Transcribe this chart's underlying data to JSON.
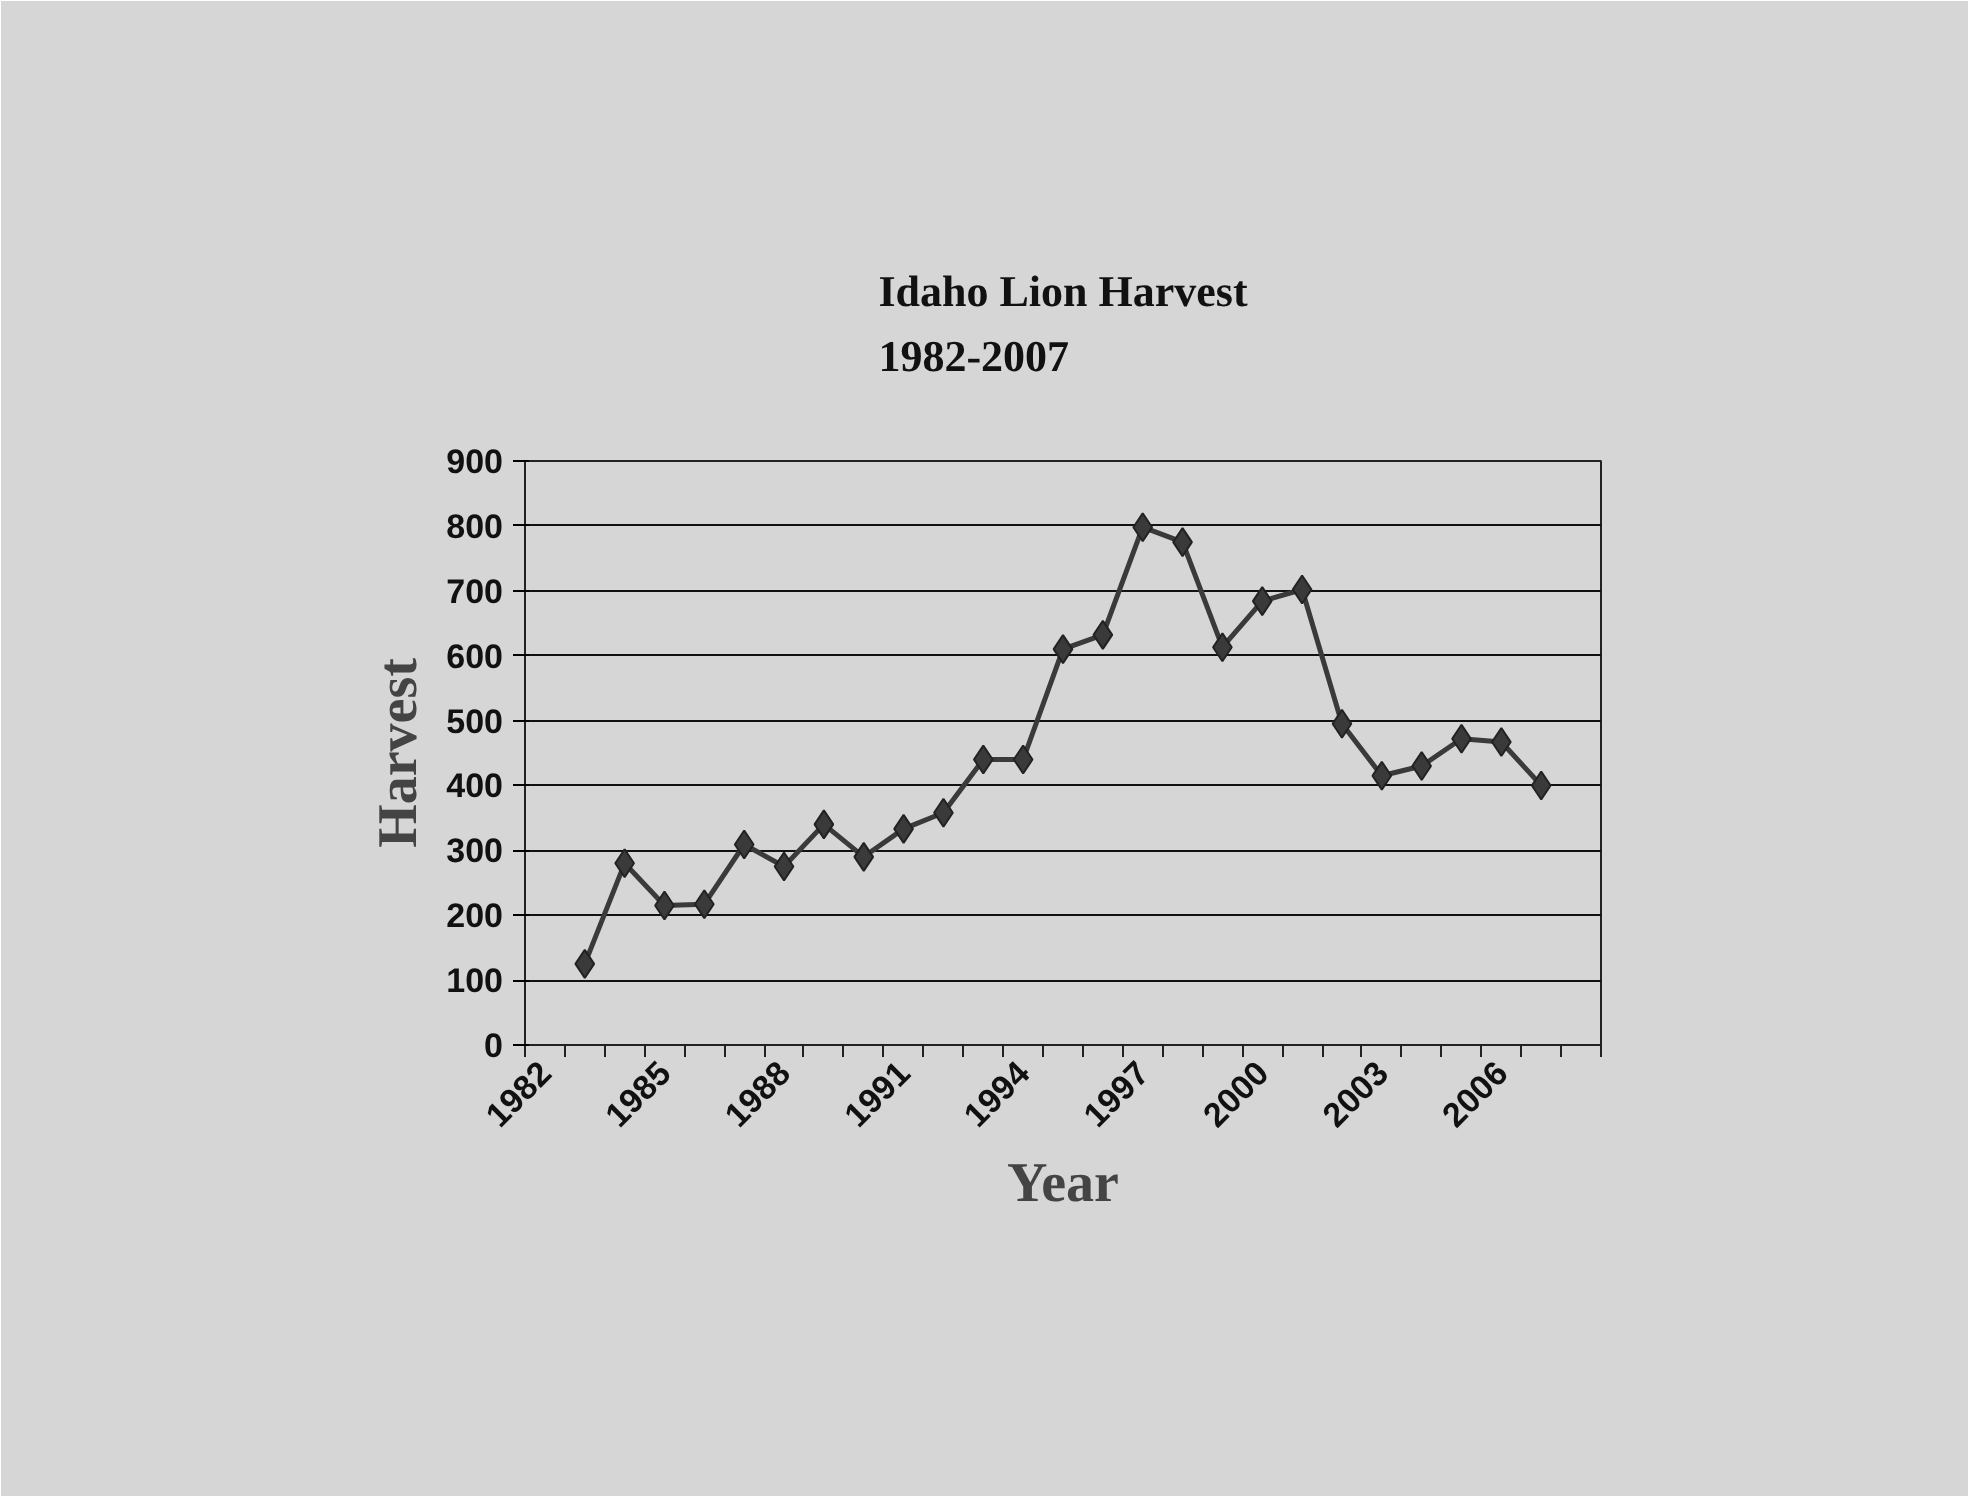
{
  "chart_data": {
    "type": "line",
    "title": "Idaho Lion Harvest\n1982-2007",
    "xlabel": "Year",
    "ylabel": "Harvest",
    "categories": [
      "1982",
      null,
      null,
      "1985",
      null,
      null,
      "1988",
      null,
      null,
      "1991",
      null,
      null,
      "1994",
      null,
      null,
      "1997",
      null,
      null,
      "2000",
      null,
      null,
      "2003",
      null,
      null,
      "2006",
      null,
      null
    ],
    "series": [
      {
        "color": "#3a3a3a",
        "values": [
          null,
          125,
          280,
          215,
          217,
          309,
          275,
          340,
          290,
          333,
          358,
          440,
          440,
          610,
          632,
          798,
          775,
          613,
          684,
          702,
          495,
          415,
          430,
          472,
          467,
          400,
          null
        ]
      }
    ],
    "ylim": [
      0,
      900
    ],
    "yticks": [
      0,
      100,
      200,
      300,
      400,
      500,
      600,
      700,
      800,
      900
    ],
    "grid": "y",
    "marker": "diamond",
    "line_style": "solid"
  }
}
